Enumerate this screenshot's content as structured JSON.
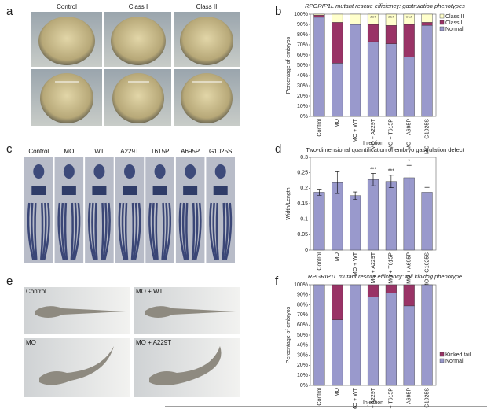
{
  "panels": {
    "a": {
      "letter": "a",
      "labels": [
        "Control",
        "Class I",
        "Class II"
      ]
    },
    "c": {
      "letter": "c",
      "labels": [
        "Control",
        "MO",
        "WT",
        "A229T",
        "T615P",
        "A695P",
        "G1025S"
      ]
    },
    "e": {
      "letter": "e",
      "labels": [
        "Control",
        "MO + WT",
        "MO",
        "MO + A229T"
      ]
    },
    "b": {
      "letter": "b"
    },
    "d": {
      "letter": "d"
    },
    "f": {
      "letter": "f"
    }
  },
  "chart_data": [
    {
      "type": "stacked-bar",
      "title": "RPGRIP1L mutant rescue efficiency: gastrulation phenotypes",
      "ylabel": "Percentage of embryos",
      "xlabel": "Injection",
      "categories": [
        "Control",
        "MO",
        "MO + WT",
        "MO + A229T",
        "MO + T615P",
        "MO + A695P",
        "MO + G1025S"
      ],
      "series": [
        {
          "name": "Normal",
          "color": "#9999cc",
          "values": [
            97,
            52,
            90,
            73,
            71,
            58,
            89
          ]
        },
        {
          "name": "Class I",
          "color": "#993366",
          "values": [
            2,
            40,
            0,
            17,
            18,
            32,
            3
          ]
        },
        {
          "name": "Class II",
          "color": "#ffffcc",
          "values": [
            1,
            8,
            10,
            10,
            11,
            10,
            8
          ]
        }
      ],
      "annotations": [
        null,
        null,
        null,
        "***",
        "***",
        "***",
        null
      ],
      "ylim": [
        0,
        100
      ],
      "yticks": [
        {
          "value": 0,
          "label": "0%"
        },
        {
          "value": 10,
          "label": "10%"
        },
        {
          "value": 20,
          "label": "20%"
        },
        {
          "value": 30,
          "label": "30%"
        },
        {
          "value": 40,
          "label": "40%"
        },
        {
          "value": 50,
          "label": "50%"
        },
        {
          "value": 60,
          "label": "60%"
        },
        {
          "value": 70,
          "label": "70%"
        },
        {
          "value": 80,
          "label": "80%"
        },
        {
          "value": 90,
          "label": "90%"
        },
        {
          "value": 100,
          "label": "100%"
        }
      ],
      "legend": "right"
    },
    {
      "type": "bar",
      "title": "Two-dimensional quantification of embryo gastrulation defect",
      "ylabel": "Width/Length",
      "color": "#9999cc",
      "categories": [
        "Control",
        "MO",
        "MO + WT",
        "MO + A229T",
        "MO + T615P",
        "MO + A695P",
        "MO + G1025S"
      ],
      "values": [
        0.187,
        0.218,
        0.176,
        0.228,
        0.222,
        0.234,
        0.187
      ],
      "errors": [
        0.01,
        0.035,
        0.012,
        0.02,
        0.02,
        0.04,
        0.016
      ],
      "annotations": [
        null,
        null,
        null,
        "***",
        "***",
        "*",
        null
      ],
      "ylim": [
        0,
        0.3
      ],
      "yticks": [
        0,
        0.05,
        0.1,
        0.15,
        0.2,
        0.25,
        0.3
      ]
    },
    {
      "type": "stacked-bar",
      "title": "RPGRIP1L mutant rescue efficiency: tail kinking phenotype",
      "ylabel": "Percentage of embryos",
      "xlabel": "Injection",
      "categories": [
        "Control",
        "MO",
        "MO + WT",
        "MO + A229T",
        "MO + T615P",
        "MO + A695P",
        "MO + G1025S"
      ],
      "series": [
        {
          "name": "Normal",
          "color": "#9999cc",
          "values": [
            100,
            65,
            100,
            88,
            92,
            79,
            100
          ]
        },
        {
          "name": "Kinked tail",
          "color": "#993366",
          "values": [
            0,
            35,
            0,
            12,
            8,
            21,
            0
          ]
        }
      ],
      "ylim": [
        0,
        100
      ],
      "yticks": [
        {
          "value": 0,
          "label": "0%"
        },
        {
          "value": 10,
          "label": "10%"
        },
        {
          "value": 20,
          "label": "20%"
        },
        {
          "value": 30,
          "label": "30%"
        },
        {
          "value": 40,
          "label": "40%"
        },
        {
          "value": 50,
          "label": "50%"
        },
        {
          "value": 60,
          "label": "60%"
        },
        {
          "value": 70,
          "label": "70%"
        },
        {
          "value": 80,
          "label": "80%"
        },
        {
          "value": 90,
          "label": "90%"
        },
        {
          "value": 100,
          "label": "100%"
        }
      ],
      "legend": "right"
    }
  ]
}
